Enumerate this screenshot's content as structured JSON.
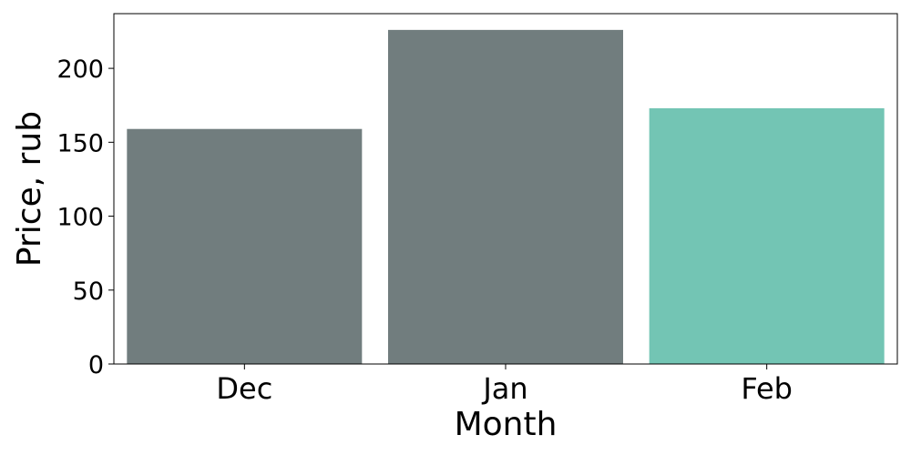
{
  "chart_data": {
    "type": "bar",
    "categories": [
      "Dec",
      "Jan",
      "Feb"
    ],
    "values": [
      159,
      226,
      173
    ],
    "bar_colors": [
      "#717d7e",
      "#717d7e",
      "#73c5b4"
    ],
    "xlabel": "Month",
    "ylabel": "Price, rub",
    "ylim": [
      0,
      237
    ],
    "yticks": [
      0,
      50,
      100,
      150,
      200
    ],
    "grid": false,
    "legend": "none"
  }
}
